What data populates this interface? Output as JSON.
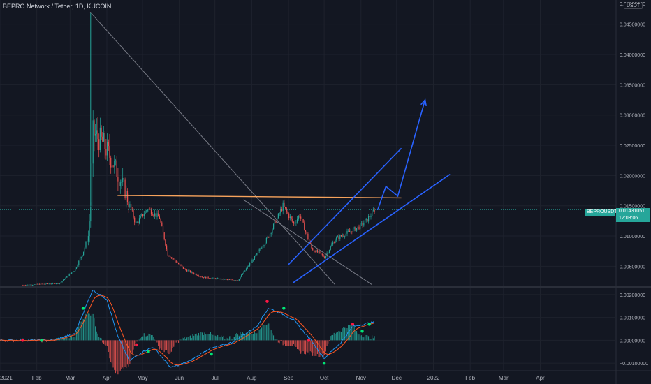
{
  "header": {
    "symbol_title": "BEPRO Network / Tether, 1D, KUCOIN"
  },
  "price_axis": {
    "currency": "USDT",
    "top_label": "0.05000000"
  },
  "price_tag": {
    "symbol": "BEPROUSDT",
    "price": "0.01431051",
    "countdown": "12:03:06",
    "color": "#26a69a"
  },
  "colors": {
    "up": "#26a69a",
    "down": "#ef5350",
    "background": "#131722",
    "grid": "#1e222d",
    "trendline_gray": "#787b86",
    "resistance": "#f7a35c",
    "channel": "#2962ff",
    "macd": "#2196f3",
    "signal": "#ff5722"
  },
  "chart_data": [
    {
      "type": "candlestick",
      "title": "BEPRO Network / Tether, 1D, KUCOIN",
      "x_range": [
        "2021-01-01",
        "2022-04-30"
      ],
      "ylim": [
        0.0017,
        0.049
      ],
      "ytick_labels": [
        "0.04500000",
        "0.04000000",
        "0.03500000",
        "0.03000000",
        "0.02500000",
        "0.02000000",
        "0.01500000",
        "0.01000000",
        "0.00500000"
      ],
      "xtick_labels": [
        "2021",
        "Feb",
        "Mar",
        "Apr",
        "May",
        "Jun",
        "Jul",
        "Aug",
        "Sep",
        "Oct",
        "Nov",
        "Dec",
        "2022",
        "Feb",
        "Mar",
        "Apr"
      ],
      "last_price": 0.01431051,
      "price_anchors": [
        {
          "date": "2021-01-20",
          "close": 0.0019
        },
        {
          "date": "2021-02-20",
          "close": 0.0022
        },
        {
          "date": "2021-03-05",
          "close": 0.0045
        },
        {
          "date": "2021-03-12",
          "close": 0.0075
        },
        {
          "date": "2021-03-16",
          "close": 0.01
        },
        {
          "date": "2021-03-18",
          "close": 0.015
        },
        {
          "date": "2021-03-20",
          "close": 0.027
        },
        {
          "date": "2021-03-28",
          "close": 0.0255
        },
        {
          "date": "2021-04-05",
          "close": 0.0225
        },
        {
          "date": "2021-04-15",
          "close": 0.018
        },
        {
          "date": "2021-04-25",
          "close": 0.012
        },
        {
          "date": "2021-05-05",
          "close": 0.0145
        },
        {
          "date": "2021-05-15",
          "close": 0.013
        },
        {
          "date": "2021-05-22",
          "close": 0.007
        },
        {
          "date": "2021-06-05",
          "close": 0.0045
        },
        {
          "date": "2021-06-20",
          "close": 0.0032
        },
        {
          "date": "2021-07-10",
          "close": 0.0028
        },
        {
          "date": "2021-07-20",
          "close": 0.0027
        },
        {
          "date": "2021-08-05",
          "close": 0.007
        },
        {
          "date": "2021-08-15",
          "close": 0.01
        },
        {
          "date": "2021-08-27",
          "close": 0.015
        },
        {
          "date": "2021-09-05",
          "close": 0.012
        },
        {
          "date": "2021-09-10",
          "close": 0.0135
        },
        {
          "date": "2021-09-20",
          "close": 0.008
        },
        {
          "date": "2021-10-01",
          "close": 0.0065
        },
        {
          "date": "2021-10-10",
          "close": 0.0095
        },
        {
          "date": "2021-10-20",
          "close": 0.0105
        },
        {
          "date": "2021-10-30",
          "close": 0.0115
        },
        {
          "date": "2021-11-05",
          "close": 0.0125
        },
        {
          "date": "2021-11-12",
          "close": 0.0143
        }
      ],
      "drawings": {
        "descending_trendline": [
          {
            "date": "2021-03-18",
            "price": 0.047
          },
          {
            "date": "2021-10-10",
            "price": 0.002
          }
        ],
        "descending_parallel": [
          {
            "date": "2021-07-25",
            "price": 0.016
          },
          {
            "date": "2021-11-10",
            "price": 0.002
          }
        ],
        "resistance_line": [
          {
            "date": "2021-04-10",
            "price": 0.0167
          },
          {
            "date": "2021-12-05",
            "price": 0.0163
          }
        ],
        "channel_upper": [
          {
            "date": "2021-09-01",
            "price": 0.0053
          },
          {
            "date": "2021-12-05",
            "price": 0.0245
          }
        ],
        "channel_lower": [
          {
            "date": "2021-09-05",
            "price": 0.0023
          },
          {
            "date": "2022-01-15",
            "price": 0.0202
          }
        ],
        "projection_path": [
          {
            "date": "2021-11-15",
            "price": 0.0143
          },
          {
            "date": "2021-11-22",
            "price": 0.0182
          },
          {
            "date": "2021-12-02",
            "price": 0.0166
          },
          {
            "date": "2021-12-25",
            "price": 0.0325
          }
        ]
      }
    },
    {
      "type": "macd",
      "ylim": [
        -0.0013,
        0.0023
      ],
      "ytick_labels": [
        "0.00200000",
        "0.00100000",
        "0.00000000",
        "−0.00100000"
      ],
      "macd_anchors": [
        {
          "date": "2021-01-01",
          "value": 0.0
        },
        {
          "date": "2021-02-15",
          "value": 0.0
        },
        {
          "date": "2021-03-05",
          "value": 0.0003
        },
        {
          "date": "2021-03-20",
          "value": 0.0022
        },
        {
          "date": "2021-04-01",
          "value": 0.0018
        },
        {
          "date": "2021-04-10",
          "value": 0.0002
        },
        {
          "date": "2021-04-20",
          "value": -0.0009
        },
        {
          "date": "2021-05-01",
          "value": -0.0005
        },
        {
          "date": "2021-05-10",
          "value": -0.0003
        },
        {
          "date": "2021-05-25",
          "value": -0.0012
        },
        {
          "date": "2021-06-10",
          "value": -0.0009
        },
        {
          "date": "2021-06-25",
          "value": -0.0004
        },
        {
          "date": "2021-07-15",
          "value": -0.0001
        },
        {
          "date": "2021-08-05",
          "value": 0.0006
        },
        {
          "date": "2021-08-15",
          "value": 0.0014
        },
        {
          "date": "2021-08-25",
          "value": 0.0012
        },
        {
          "date": "2021-09-05",
          "value": 0.0009
        },
        {
          "date": "2021-09-20",
          "value": 0.0
        },
        {
          "date": "2021-10-01",
          "value": -0.0008
        },
        {
          "date": "2021-10-15",
          "value": -0.0001
        },
        {
          "date": "2021-10-25",
          "value": 0.0006
        },
        {
          "date": "2021-11-12",
          "value": 0.0008
        }
      ],
      "cross_markers": [
        {
          "date": "2021-01-20",
          "value": 0.0,
          "kind": "bearish"
        },
        {
          "date": "2021-02-05",
          "value": 0.0,
          "kind": "bullish"
        },
        {
          "date": "2021-03-12",
          "value": 0.0014,
          "kind": "bullish"
        },
        {
          "date": "2021-04-26",
          "value": -0.0002,
          "kind": "bearish"
        },
        {
          "date": "2021-05-06",
          "value": -0.0005,
          "kind": "bullish"
        },
        {
          "date": "2021-06-28",
          "value": -0.0006,
          "kind": "bullish"
        },
        {
          "date": "2021-08-14",
          "value": 0.0017,
          "kind": "bearish"
        },
        {
          "date": "2021-08-28",
          "value": 0.0014,
          "kind": "bullish"
        },
        {
          "date": "2021-09-18",
          "value": 0.0,
          "kind": "bearish"
        },
        {
          "date": "2021-10-01",
          "value": -0.001,
          "kind": "bullish"
        },
        {
          "date": "2021-10-25",
          "value": 0.0007,
          "kind": "bearish"
        },
        {
          "date": "2021-11-02",
          "value": 0.0004,
          "kind": "bullish"
        },
        {
          "date": "2021-11-08",
          "value": 0.0007,
          "kind": "bullish"
        }
      ]
    }
  ]
}
